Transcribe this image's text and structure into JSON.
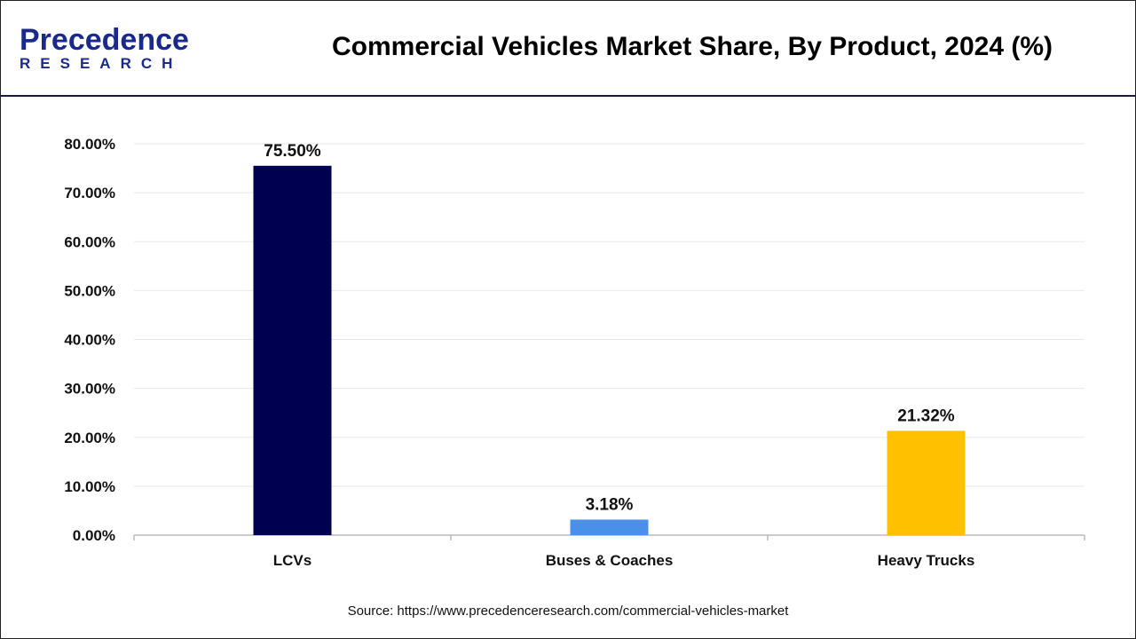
{
  "logo": {
    "line1": "Precedence",
    "line2": "RESEARCH"
  },
  "title": "Commercial Vehicles Market Share, By Product, 2024 (%)",
  "source": "Source: https://www.precedenceresearch.com/commercial-vehicles-market",
  "chart_data": {
    "type": "bar",
    "title": "Commercial Vehicles Market Share, By Product, 2024 (%)",
    "categories": [
      "LCVs",
      "Buses & Coaches",
      "Heavy Trucks"
    ],
    "values": [
      75.5,
      3.18,
      21.32
    ],
    "data_labels": [
      "75.50%",
      "3.18%",
      "21.32%"
    ],
    "colors": [
      "#000050",
      "#4a8fe8",
      "#ffc000"
    ],
    "ylim": [
      0,
      80
    ],
    "yticks": [
      "0.00%",
      "10.00%",
      "20.00%",
      "30.00%",
      "40.00%",
      "50.00%",
      "60.00%",
      "70.00%",
      "80.00%"
    ],
    "grid": true,
    "legend": "none"
  }
}
